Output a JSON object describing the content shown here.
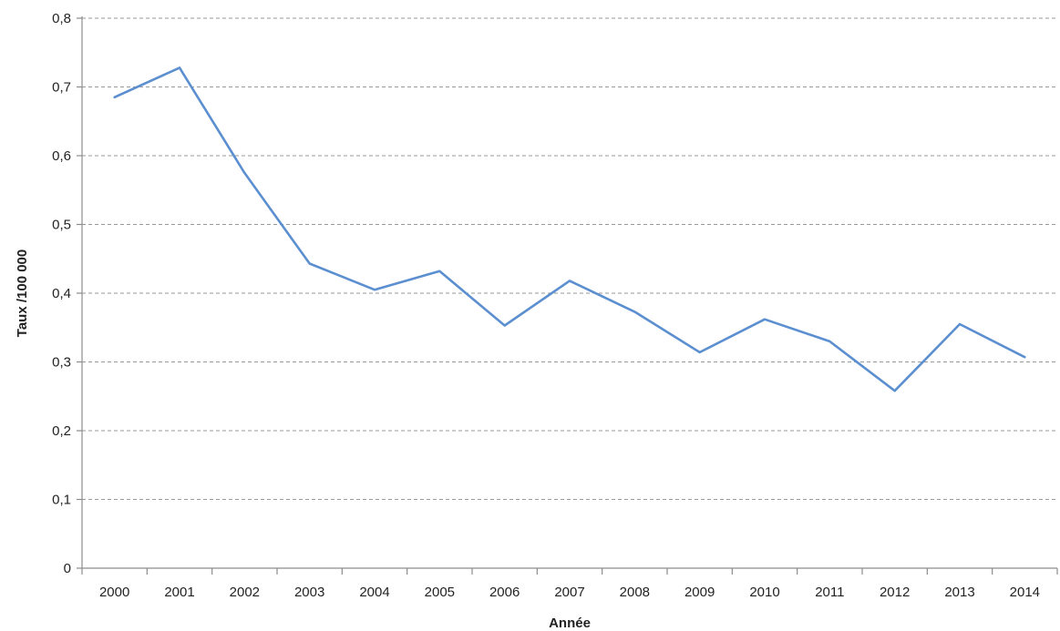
{
  "chart_data": {
    "type": "line",
    "title": "",
    "xlabel": "Année",
    "ylabel": "Taux /100 000",
    "categories": [
      "2000",
      "2001",
      "2002",
      "2003",
      "2004",
      "2005",
      "2006",
      "2007",
      "2008",
      "2009",
      "2010",
      "2011",
      "2012",
      "2013",
      "2014"
    ],
    "series": [
      {
        "values": [
          0.685,
          0.728,
          0.575,
          0.443,
          0.405,
          0.432,
          0.353,
          0.418,
          0.373,
          0.314,
          0.362,
          0.33,
          0.258,
          0.355,
          0.307
        ]
      }
    ],
    "ylim": [
      0,
      0.8
    ],
    "yticks": [
      0,
      0.1,
      0.2,
      0.3,
      0.4,
      0.5,
      0.6,
      0.7,
      0.8
    ],
    "ytick_labels": [
      "0",
      "0,1",
      "0,2",
      "0,3",
      "0,4",
      "0,5",
      "0,6",
      "0,7",
      "0,8"
    ],
    "grid": "horizontal-dashed",
    "legend": "none",
    "colors": {
      "line": "#5b8fd0",
      "grid": "#9a9a9a",
      "axis": "#8c8c8c",
      "text": "#222222"
    }
  }
}
